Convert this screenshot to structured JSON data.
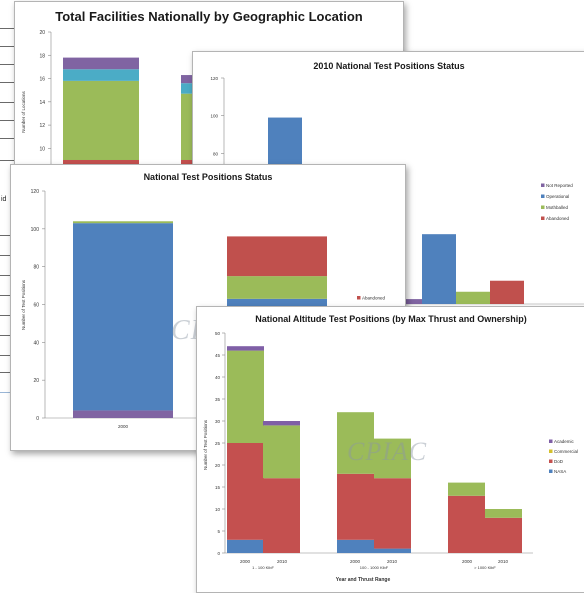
{
  "colors": {
    "academic": "#7f5fa6",
    "commercial": "#31b3c7",
    "dod": "#c4504f",
    "nasa": "#4f81bd",
    "operational": "#4f81bd",
    "mothballed": "#9bbb59",
    "abandoned": "#c0504d",
    "not_reported": "#8064a2"
  },
  "side_fragment": {
    "text": "id"
  },
  "watermark": "CPIAC",
  "chart_data": [
    {
      "type": "bar",
      "title": "Total Facilities Nationally by Geographic Location",
      "ylabel": "Number of Locations",
      "ylim": [
        0,
        20
      ],
      "yticks": [
        20,
        18,
        16,
        14,
        12,
        10
      ],
      "stacked": true,
      "series": [
        {
          "color": "red",
          "values": [
            1,
            1
          ]
        },
        {
          "color": "green",
          "values": [
            6.8,
            5.7
          ]
        },
        {
          "color": "teal",
          "values": [
            1.0,
            0.9
          ]
        },
        {
          "color": "purple",
          "values": [
            1.0,
            0.7
          ]
        }
      ]
    },
    {
      "type": "bar",
      "title": "2010 National Test Positions Status",
      "ylim": [
        0,
        120
      ],
      "yticks": [
        120,
        100,
        80
      ],
      "legend": [
        "Not Reported",
        "Operational",
        "Mothballed",
        "Abandoned"
      ],
      "legend_position": "right",
      "values": {
        "bar_top_left": 99,
        "not_reported": 4,
        "operational": 57,
        "mothballed": 10,
        "abandoned": 19
      }
    },
    {
      "type": "bar",
      "title": "National Test Positions Status",
      "ylabel": "Number of Test Positions",
      "ylim": [
        0,
        120
      ],
      "yticks": [
        120,
        100,
        80,
        60,
        40,
        20,
        0
      ],
      "categories": [
        "2000",
        ""
      ],
      "stacked": true,
      "series": [
        {
          "name": "Not Reported",
          "values": [
            4,
            0
          ]
        },
        {
          "name": "Operational",
          "values": [
            99,
            63
          ]
        },
        {
          "name": "Mothballed",
          "values": [
            1,
            12
          ]
        },
        {
          "name": "Abandoned",
          "values": [
            0,
            21
          ]
        }
      ],
      "legend_visible": [
        "Abandoned"
      ]
    },
    {
      "type": "bar",
      "title": "National Altitude Test Positions (by Max Thrust and Ownership)",
      "xlabel": "Year and Thrust Range",
      "ylabel": "Number of Test Positions",
      "ylim": [
        0,
        50
      ],
      "yticks": [
        50,
        45,
        40,
        35,
        30,
        25,
        20,
        15,
        10,
        5,
        0
      ],
      "legend": [
        "Academic",
        "Commercial",
        "DoD",
        "NASA"
      ],
      "legend_position": "right",
      "groups": [
        "1 - 100 KlbF",
        "100 - 1000 KlbF",
        "> 1000 KlbF"
      ],
      "categories": [
        "2000",
        "2010",
        "2000",
        "2010",
        "2000",
        "2010"
      ],
      "stacked": true,
      "series": [
        {
          "name": "NASA",
          "values": [
            3,
            0,
            3,
            1,
            0,
            0
          ]
        },
        {
          "name": "DoD",
          "values": [
            22,
            17,
            15,
            16,
            13,
            8
          ]
        },
        {
          "name": "Commercial",
          "values": [
            21,
            12,
            14,
            9,
            3,
            2
          ]
        },
        {
          "name": "Academic",
          "values": [
            1,
            1,
            0,
            0,
            0,
            0
          ]
        }
      ]
    }
  ]
}
